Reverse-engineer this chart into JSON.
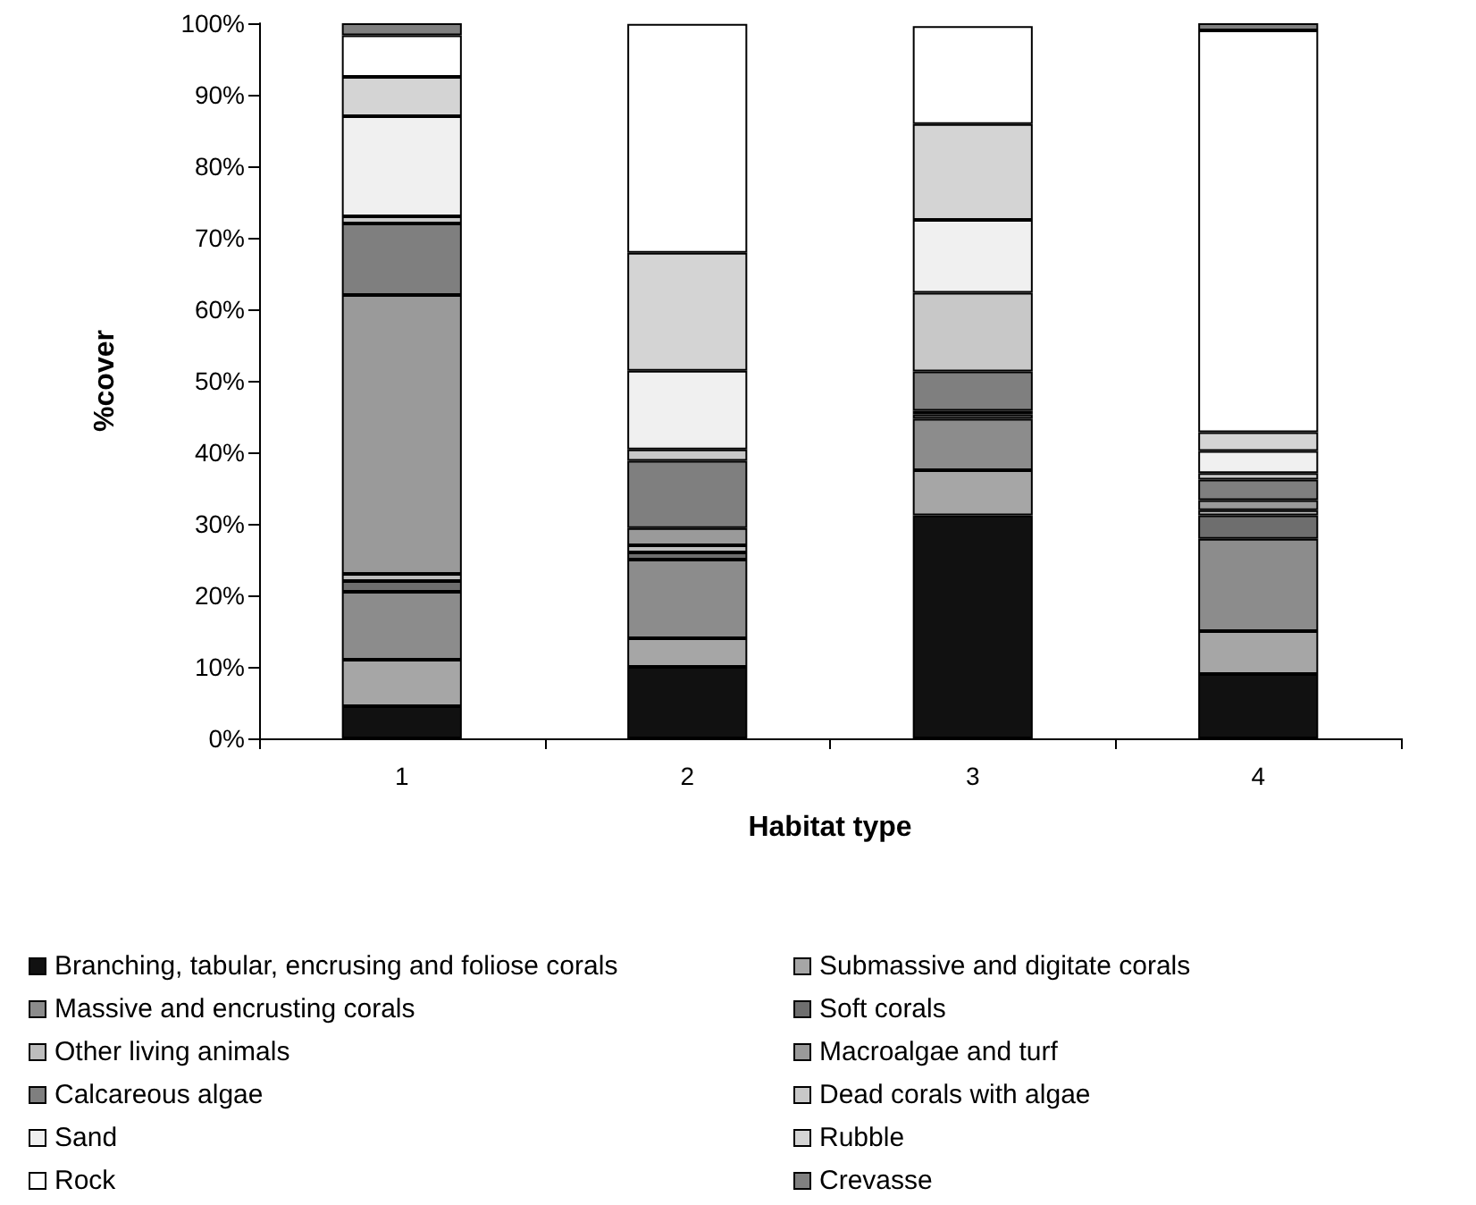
{
  "chart_data": {
    "type": "bar",
    "stacked": true,
    "xlabel": "Habitat type",
    "ylabel": "%cover",
    "categories": [
      "1",
      "2",
      "3",
      "4"
    ],
    "ylim": [
      0,
      100
    ],
    "yticks": [
      {
        "value": 0,
        "label": "0%"
      },
      {
        "value": 10,
        "label": "10%"
      },
      {
        "value": 20,
        "label": "20%"
      },
      {
        "value": 30,
        "label": "30%"
      },
      {
        "value": 40,
        "label": "40%"
      },
      {
        "value": 50,
        "label": "50%"
      },
      {
        "value": 60,
        "label": "60%"
      },
      {
        "value": 70,
        "label": "70%"
      },
      {
        "value": 80,
        "label": "80%"
      },
      {
        "value": 90,
        "label": "90%"
      },
      {
        "value": 100,
        "label": "100%"
      }
    ],
    "grid": false,
    "legend": "bottom",
    "series": [
      {
        "name": "Branching, tabular, encrusing and foliose corals",
        "color": "#111111",
        "values": [
          4.5,
          10,
          31.2,
          9
        ]
      },
      {
        "name": "Submassive and digitate corals",
        "color": "#a6a6a6",
        "values": [
          6.5,
          4,
          6.3,
          6
        ]
      },
      {
        "name": "Massive and encrusting corals",
        "color": "#8c8c8c",
        "values": [
          9.5,
          11,
          7.2,
          12.9
        ]
      },
      {
        "name": "Soft corals",
        "color": "#6e6e6e",
        "values": [
          1.5,
          1,
          0.6,
          3.3
        ]
      },
      {
        "name": "Other living animals",
        "color": "#bdbdbd",
        "values": [
          1,
          1,
          0.5,
          0.7
        ]
      },
      {
        "name": "Macroalgae and turf",
        "color": "#9a9a9a",
        "values": [
          39,
          2.4,
          null,
          1.4
        ]
      },
      {
        "name": "Calcareous algae",
        "color": "#7f7f7f",
        "values": [
          10,
          9.4,
          5.5,
          2.9
        ]
      },
      {
        "name": "Dead corals with algae",
        "color": "#c8c8c8",
        "values": [
          1,
          1.6,
          11,
          0.9
        ]
      },
      {
        "name": "Sand",
        "color": "#f0f0f0",
        "values": [
          14,
          11,
          10.2,
          3.1
        ]
      },
      {
        "name": "Rubble",
        "color": "#d4d4d4",
        "values": [
          5.5,
          16.5,
          13.4,
          2.6
        ]
      },
      {
        "name": "Rock",
        "color": "#ffffff",
        "values": [
          5.8,
          32,
          13.7,
          56.2
        ]
      },
      {
        "name": "Crevasse",
        "color": "#808080",
        "values": [
          1.7,
          null,
          null,
          1
        ]
      }
    ]
  }
}
